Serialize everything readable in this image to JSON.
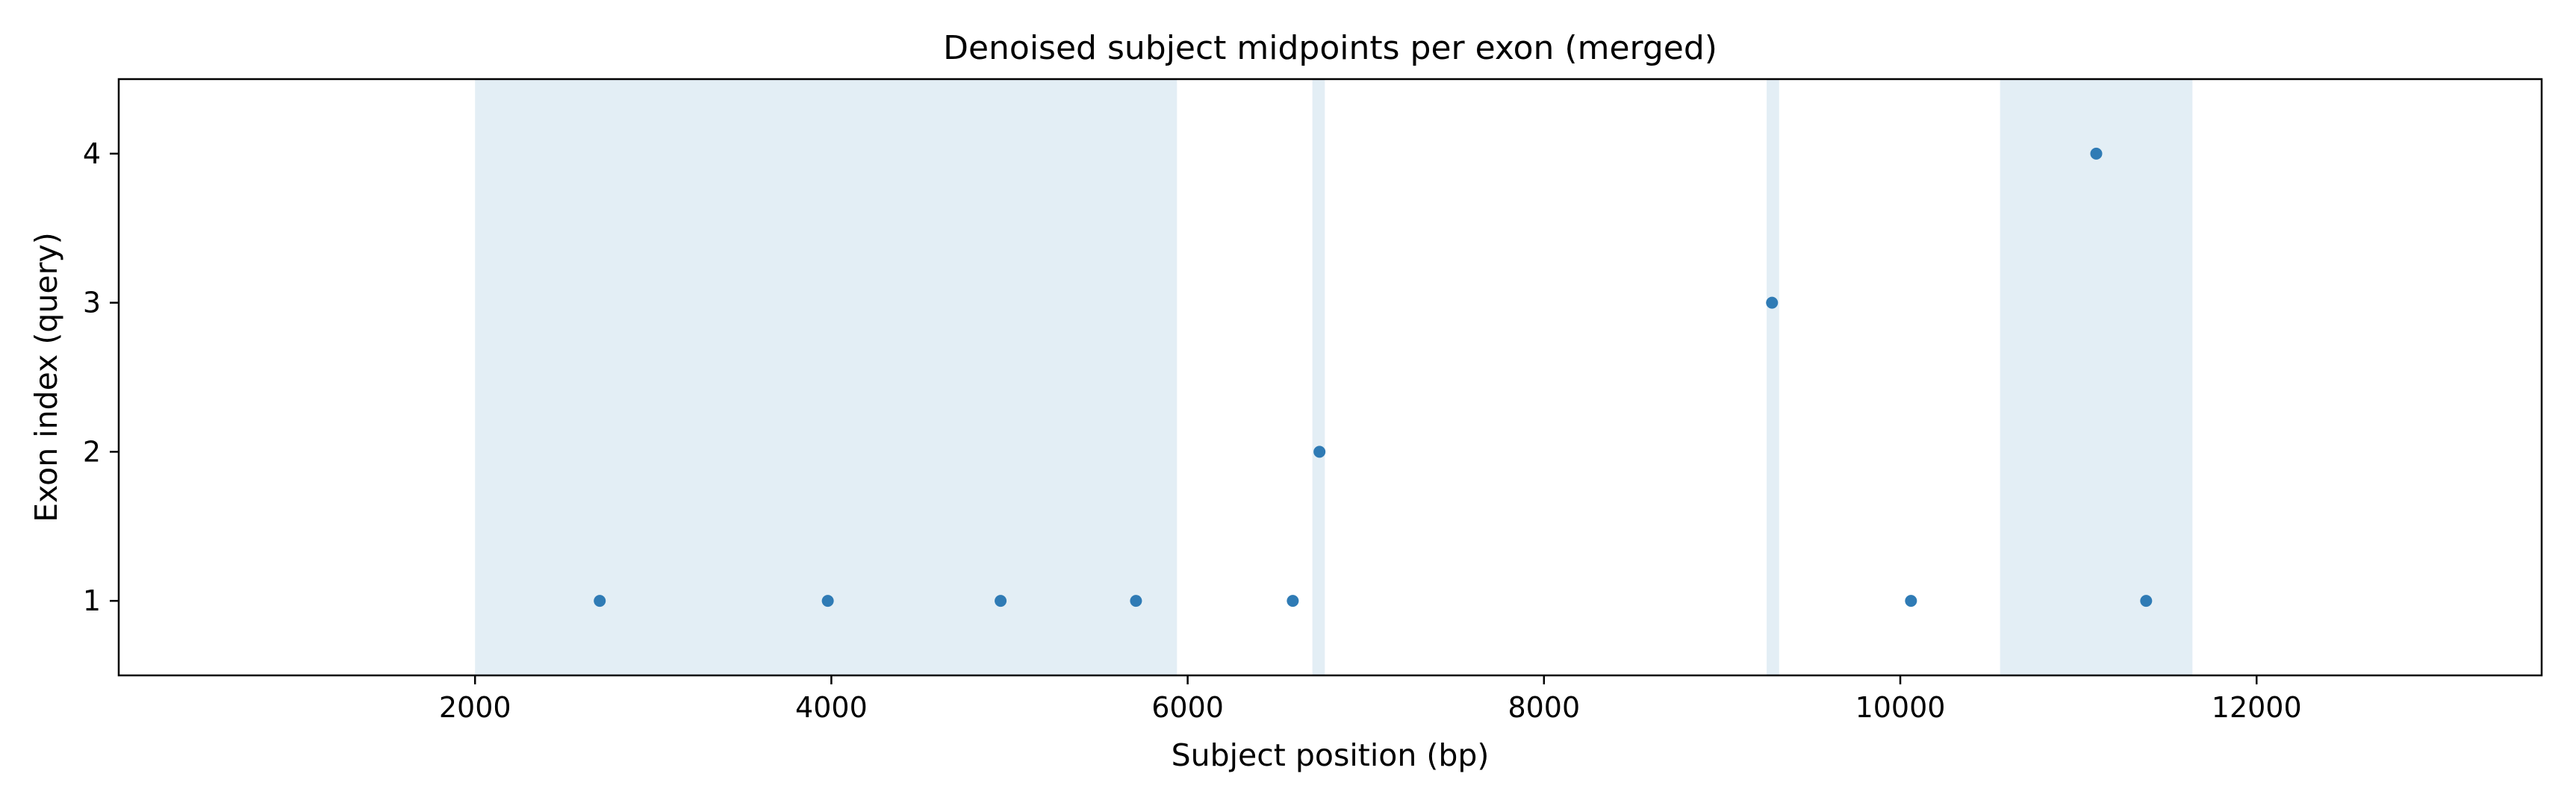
{
  "chart_data": {
    "type": "scatter",
    "title": "Denoised subject midpoints per exon (merged)",
    "xlabel": "Subject position (bp)",
    "ylabel": "Exon index (query)",
    "xlim": [
      0,
      13600
    ],
    "ylim": [
      0.5,
      4.5
    ],
    "xticks": [
      2000,
      4000,
      6000,
      8000,
      10000,
      12000
    ],
    "yticks": [
      1,
      2,
      3,
      4
    ],
    "grid": false,
    "legend": "none",
    "series": [
      {
        "x": [
          2700,
          3980,
          4950,
          5710,
          6590,
          6740,
          9280,
          10060,
          11100,
          11380
        ],
        "y": [
          1,
          1,
          1,
          1,
          1,
          2,
          3,
          1,
          4,
          1
        ]
      }
    ],
    "shaded_regions": [
      {
        "x_start": 2000,
        "x_end": 5940
      },
      {
        "x_start": 6700,
        "x_end": 6770
      },
      {
        "x_start": 9250,
        "x_end": 9320
      },
      {
        "x_start": 10560,
        "x_end": 11640
      }
    ],
    "colors": {
      "points": "#2f7bb5",
      "shade": "#e3eef5",
      "frame": "#000000"
    }
  }
}
